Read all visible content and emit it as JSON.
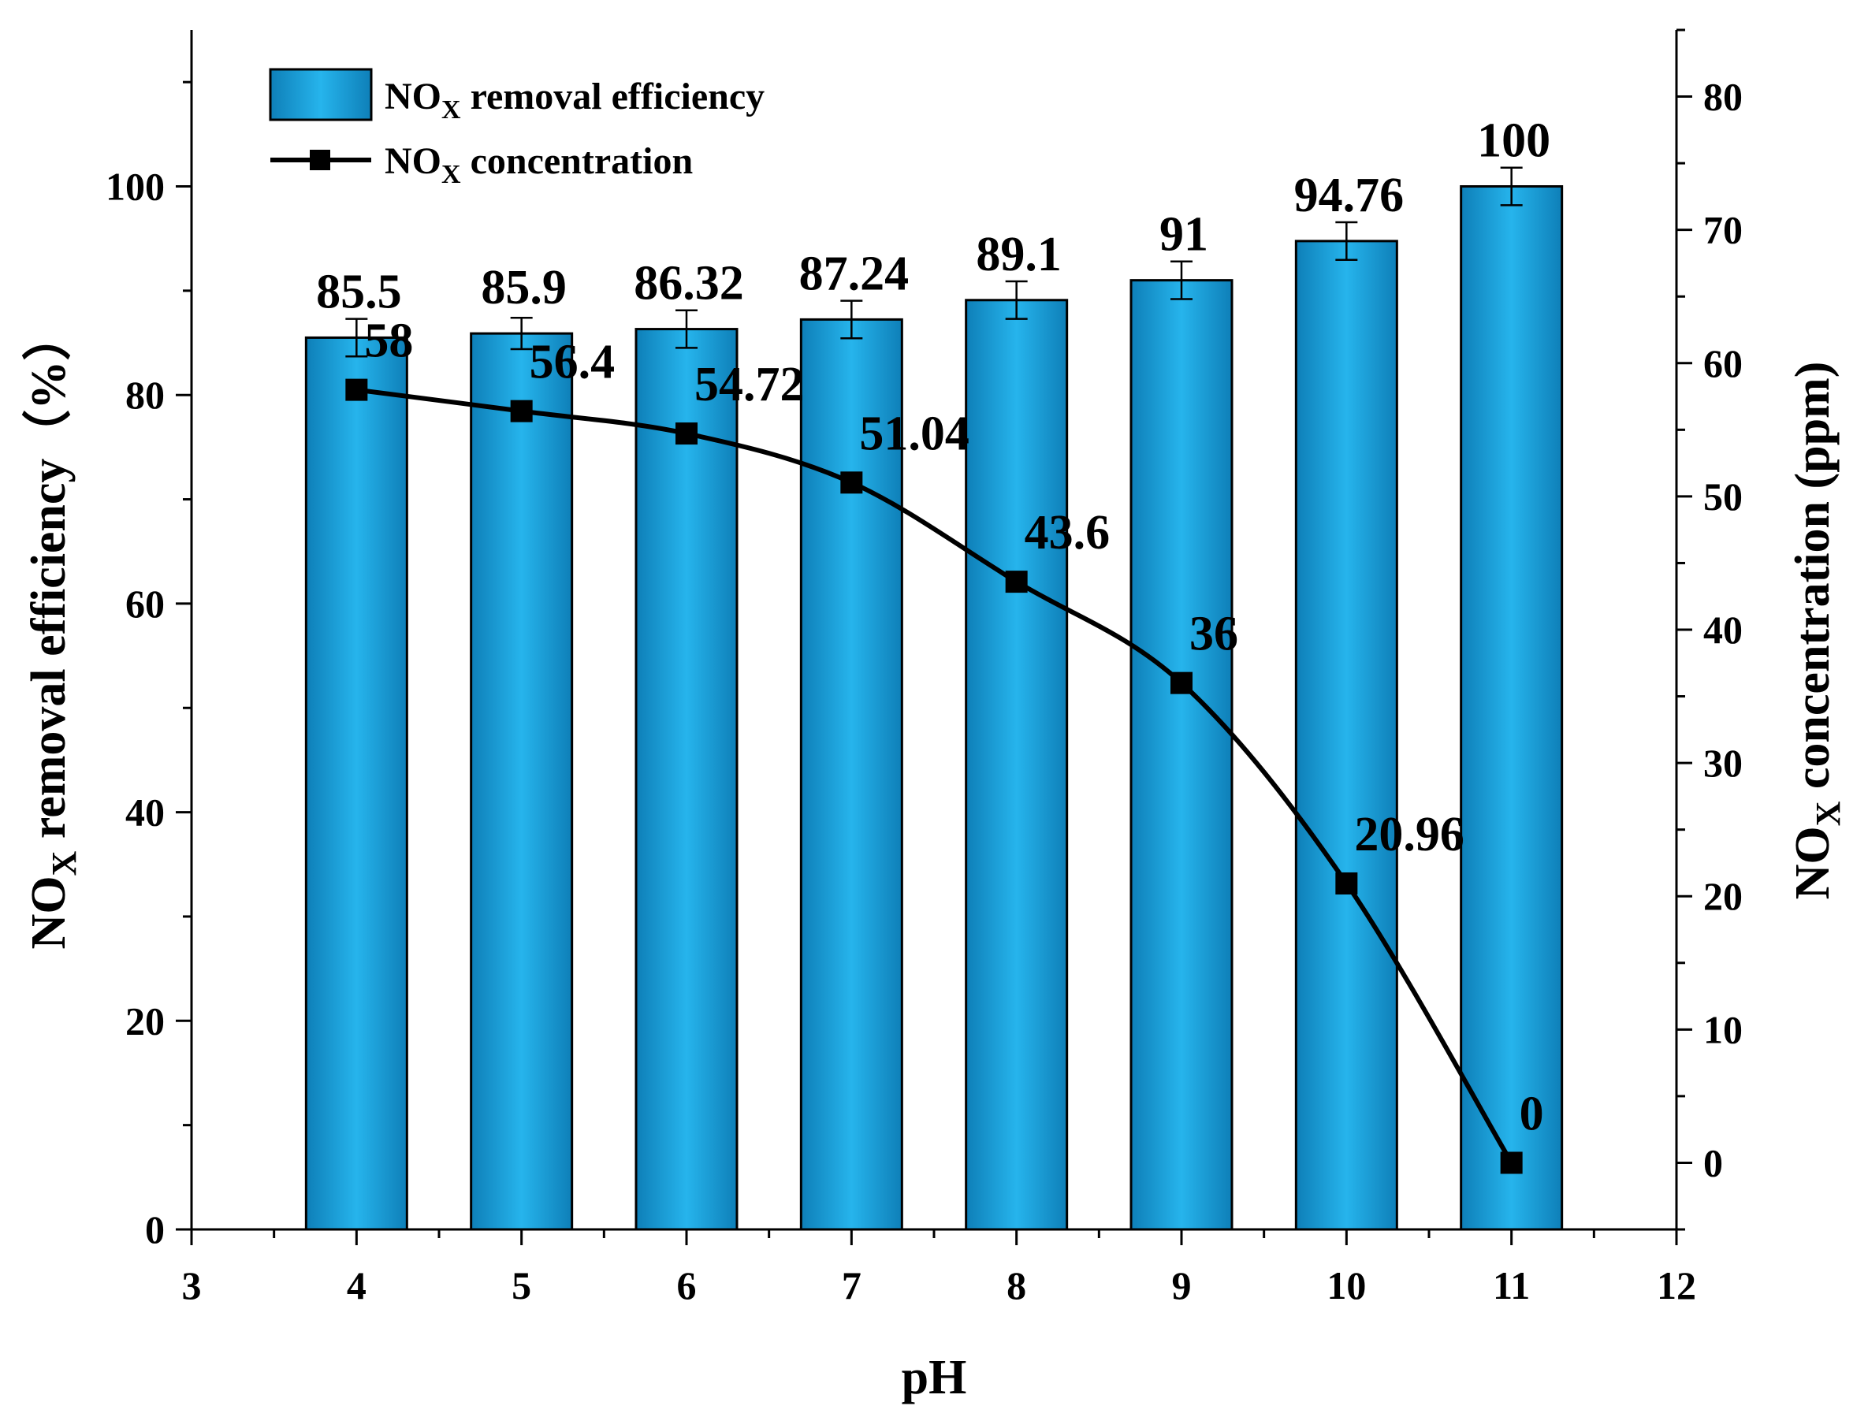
{
  "chart_data": {
    "type": "bar+line",
    "x_values": [
      4,
      5,
      6,
      7,
      8,
      9,
      10,
      11
    ],
    "x_tick_labels": [
      "3",
      "4",
      "5",
      "6",
      "7",
      "8",
      "9",
      "10",
      "11",
      "12"
    ],
    "x_ticks": [
      3,
      4,
      5,
      6,
      7,
      8,
      9,
      10,
      11,
      12
    ],
    "xlim": [
      3,
      12
    ],
    "xlabel": "pH",
    "left_axis": {
      "label_main": "NO",
      "label_sub": "X",
      "label_rest": " removal efficiency（%）",
      "ylim": [
        0,
        115
      ],
      "ticks": [
        0,
        20,
        40,
        60,
        80,
        100
      ],
      "tick_labels": [
        "0",
        "20",
        "40",
        "60",
        "80",
        "100"
      ]
    },
    "right_axis": {
      "label_main": "NO",
      "label_sub": "X",
      "label_rest": " concentration (ppm)",
      "ylim": [
        -5,
        85
      ],
      "ticks": [
        0,
        10,
        20,
        30,
        40,
        50,
        60,
        70,
        80
      ],
      "tick_labels": [
        "0",
        "10",
        "20",
        "30",
        "40",
        "50",
        "60",
        "70",
        "80"
      ]
    },
    "series": [
      {
        "name": "NOX removal efficiency",
        "legend_main": "NO",
        "legend_sub": "X",
        "legend_rest": " removal efficiency",
        "kind": "bar",
        "axis": "left",
        "color": "#1AA3DD",
        "values": [
          85.5,
          85.9,
          86.32,
          87.24,
          89.1,
          91,
          94.76,
          100
        ],
        "labels": [
          "85.5",
          "85.9",
          "86.32",
          "87.24",
          "89.1",
          "91",
          "94.76",
          "100"
        ],
        "error": [
          1.8,
          1.5,
          1.8,
          1.8,
          1.8,
          1.8,
          1.8,
          1.8
        ]
      },
      {
        "name": "NOX concentration",
        "legend_main": "NO",
        "legend_sub": "X",
        "legend_rest": " concentration",
        "kind": "line",
        "axis": "right",
        "color": "#000000",
        "values": [
          58,
          56.4,
          54.72,
          51.04,
          43.6,
          36,
          20.96,
          0
        ],
        "labels": [
          "58",
          "56.4",
          "54.72",
          "51.04",
          "43.6",
          "36",
          "20.96",
          "0"
        ]
      }
    ]
  }
}
